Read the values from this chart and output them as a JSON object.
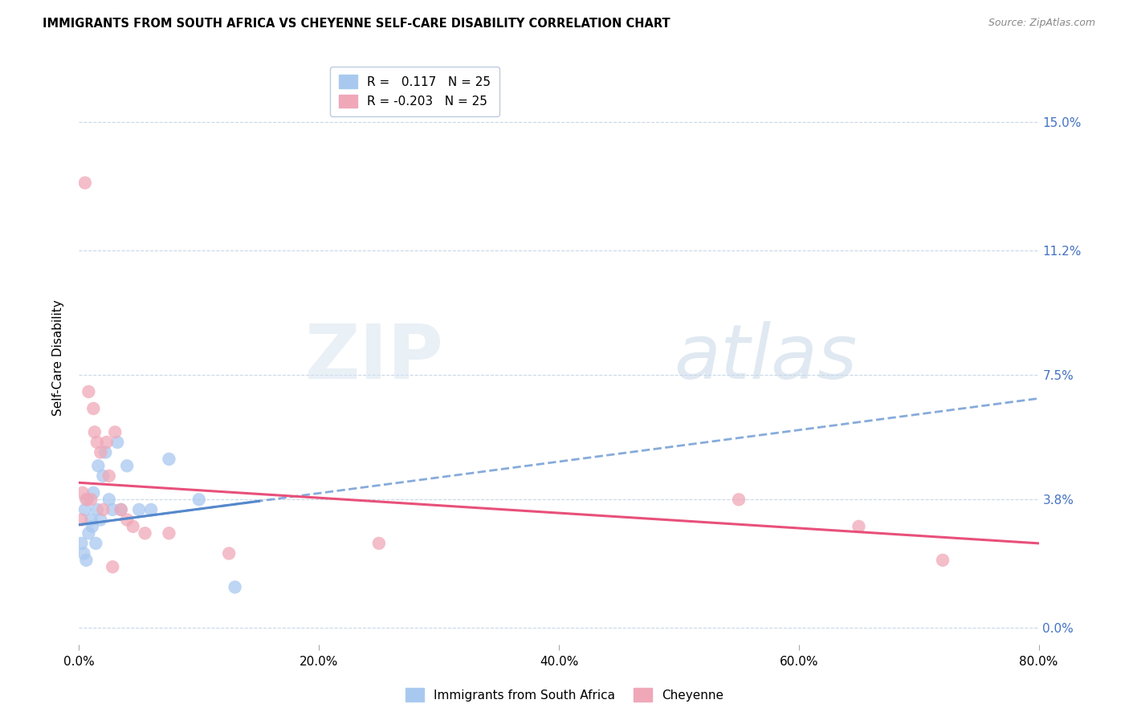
{
  "title": "IMMIGRANTS FROM SOUTH AFRICA VS CHEYENNE SELF-CARE DISABILITY CORRELATION CHART",
  "source": "Source: ZipAtlas.com",
  "ylabel": "Self-Care Disability",
  "legend_label1": "Immigrants from South Africa",
  "legend_label2": "Cheyenne",
  "R1": 0.117,
  "N1": 25,
  "R2": -0.203,
  "N2": 25,
  "xmin": 0.0,
  "xmax": 80.0,
  "ymin": -0.5,
  "ymax": 16.5,
  "yticks": [
    0.0,
    3.8,
    7.5,
    11.2,
    15.0
  ],
  "xticks": [
    0.0,
    20.0,
    40.0,
    60.0,
    80.0
  ],
  "color_blue": "#a8c8f0",
  "color_pink": "#f0a8b8",
  "color_line_blue": "#5588cc",
  "color_line_pink": "#e8507a",
  "color_axis_right": "#4472c4",
  "background": "#ffffff",
  "grid_color": "#c8d8e8",
  "blue_x": [
    0.2,
    0.4,
    0.5,
    0.6,
    0.7,
    0.8,
    1.0,
    1.1,
    1.2,
    1.4,
    1.5,
    1.6,
    1.8,
    2.0,
    2.2,
    2.5,
    2.8,
    3.2,
    3.5,
    4.0,
    5.0,
    6.0,
    7.5,
    10.0,
    13.0
  ],
  "blue_y": [
    2.5,
    2.2,
    3.5,
    2.0,
    3.8,
    2.8,
    3.2,
    3.0,
    4.0,
    2.5,
    3.5,
    4.8,
    3.2,
    4.5,
    5.2,
    3.8,
    3.5,
    5.5,
    3.5,
    4.8,
    3.5,
    3.5,
    5.0,
    3.8,
    1.2
  ],
  "pink_x": [
    0.2,
    0.3,
    0.5,
    0.6,
    0.8,
    1.0,
    1.2,
    1.3,
    1.5,
    1.8,
    2.0,
    2.3,
    2.5,
    3.0,
    3.5,
    4.0,
    4.5,
    5.5,
    7.5,
    12.5,
    25.0,
    55.0,
    65.0,
    72.0,
    2.8
  ],
  "pink_y": [
    3.2,
    4.0,
    13.2,
    3.8,
    7.0,
    3.8,
    6.5,
    5.8,
    5.5,
    5.2,
    3.5,
    5.5,
    4.5,
    5.8,
    3.5,
    3.2,
    3.0,
    2.8,
    2.8,
    2.2,
    2.5,
    3.8,
    3.0,
    2.0,
    1.8
  ],
  "blue_line_x0": 0.0,
  "blue_line_y0": 3.05,
  "blue_line_x1": 80.0,
  "blue_line_y1": 6.8,
  "pink_line_x0": 0.0,
  "pink_line_y0": 4.3,
  "pink_line_x1": 80.0,
  "pink_line_y1": 2.5
}
